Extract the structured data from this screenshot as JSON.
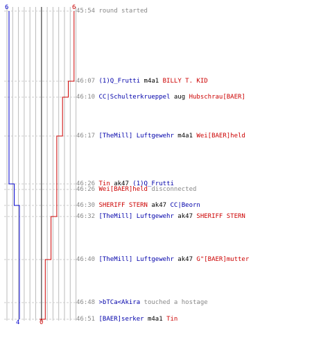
{
  "colors": {
    "blue": "#0000cc",
    "red": "#cc0000",
    "grid": "#bbbbbb",
    "center": "#666666",
    "dash": "#cccccc"
  },
  "top_counts": {
    "blue": "6",
    "red": "6"
  },
  "bottom_counts": {
    "blue": "4",
    "red": "0"
  },
  "events": [
    {
      "time": "45:54",
      "tokens": [
        {
          "t": "round started",
          "c": "gray"
        }
      ]
    },
    {
      "time": "46:07",
      "tokens": [
        {
          "t": "(1)Q_Frutti",
          "c": "blue"
        },
        {
          "t": " m4a1 ",
          "c": "dark"
        },
        {
          "t": "BILLY T. KID",
          "c": "red"
        }
      ]
    },
    {
      "time": "46:10",
      "tokens": [
        {
          "t": "CC|Schulterkrueppel",
          "c": "blue"
        },
        {
          "t": " aug ",
          "c": "dark"
        },
        {
          "t": "Hubschrau[BAER]",
          "c": "red"
        }
      ]
    },
    {
      "time": "46:17",
      "tokens": [
        {
          "t": "[TheMill] Luftgewehr",
          "c": "blue"
        },
        {
          "t": " m4a1 ",
          "c": "dark"
        },
        {
          "t": "Wei[BAER]held",
          "c": "red"
        }
      ]
    },
    {
      "time": "46:26",
      "tokens": [
        {
          "t": "Tin",
          "c": "red"
        },
        {
          "t": " ak47 ",
          "c": "dark"
        },
        {
          "t": "(1)Q_Frutti",
          "c": "blue"
        }
      ]
    },
    {
      "time": "46:26",
      "tokens": [
        {
          "t": "Wei[BAER]held",
          "c": "red"
        },
        {
          "t": " disconnected",
          "c": "gray"
        }
      ]
    },
    {
      "time": "46:30",
      "tokens": [
        {
          "t": "SHERIFF STERN",
          "c": "red"
        },
        {
          "t": " ak47 ",
          "c": "dark"
        },
        {
          "t": "CC|Beorn",
          "c": "blue"
        }
      ]
    },
    {
      "time": "46:32",
      "tokens": [
        {
          "t": "[TheMill] Luftgewehr",
          "c": "blue"
        },
        {
          "t": " ak47 ",
          "c": "dark"
        },
        {
          "t": "SHERIFF STERN",
          "c": "red"
        }
      ]
    },
    {
      "time": "46:40",
      "tokens": [
        {
          "t": "[TheMill] Luftgewehr",
          "c": "blue"
        },
        {
          "t": " ak47 ",
          "c": "dark"
        },
        {
          "t": "G\"[BAER]mutter",
          "c": "red"
        }
      ]
    },
    {
      "time": "46:48",
      "tokens": [
        {
          "t": ">bTCa<Akira",
          "c": "blue"
        },
        {
          "t": " touched a hostage",
          "c": "gray"
        }
      ]
    },
    {
      "time": "46:51",
      "tokens": [
        {
          "t": "[BAER]serker",
          "c": "blue"
        },
        {
          "t": " m4a1 ",
          "c": "dark"
        },
        {
          "t": "Tin",
          "c": "red"
        }
      ]
    }
  ],
  "blue_steps": [
    6,
    6,
    6,
    6,
    5,
    5,
    4,
    4,
    4,
    4,
    4
  ],
  "red_steps": [
    6,
    5,
    4,
    3,
    3,
    3,
    3,
    2,
    1,
    1,
    0
  ]
}
